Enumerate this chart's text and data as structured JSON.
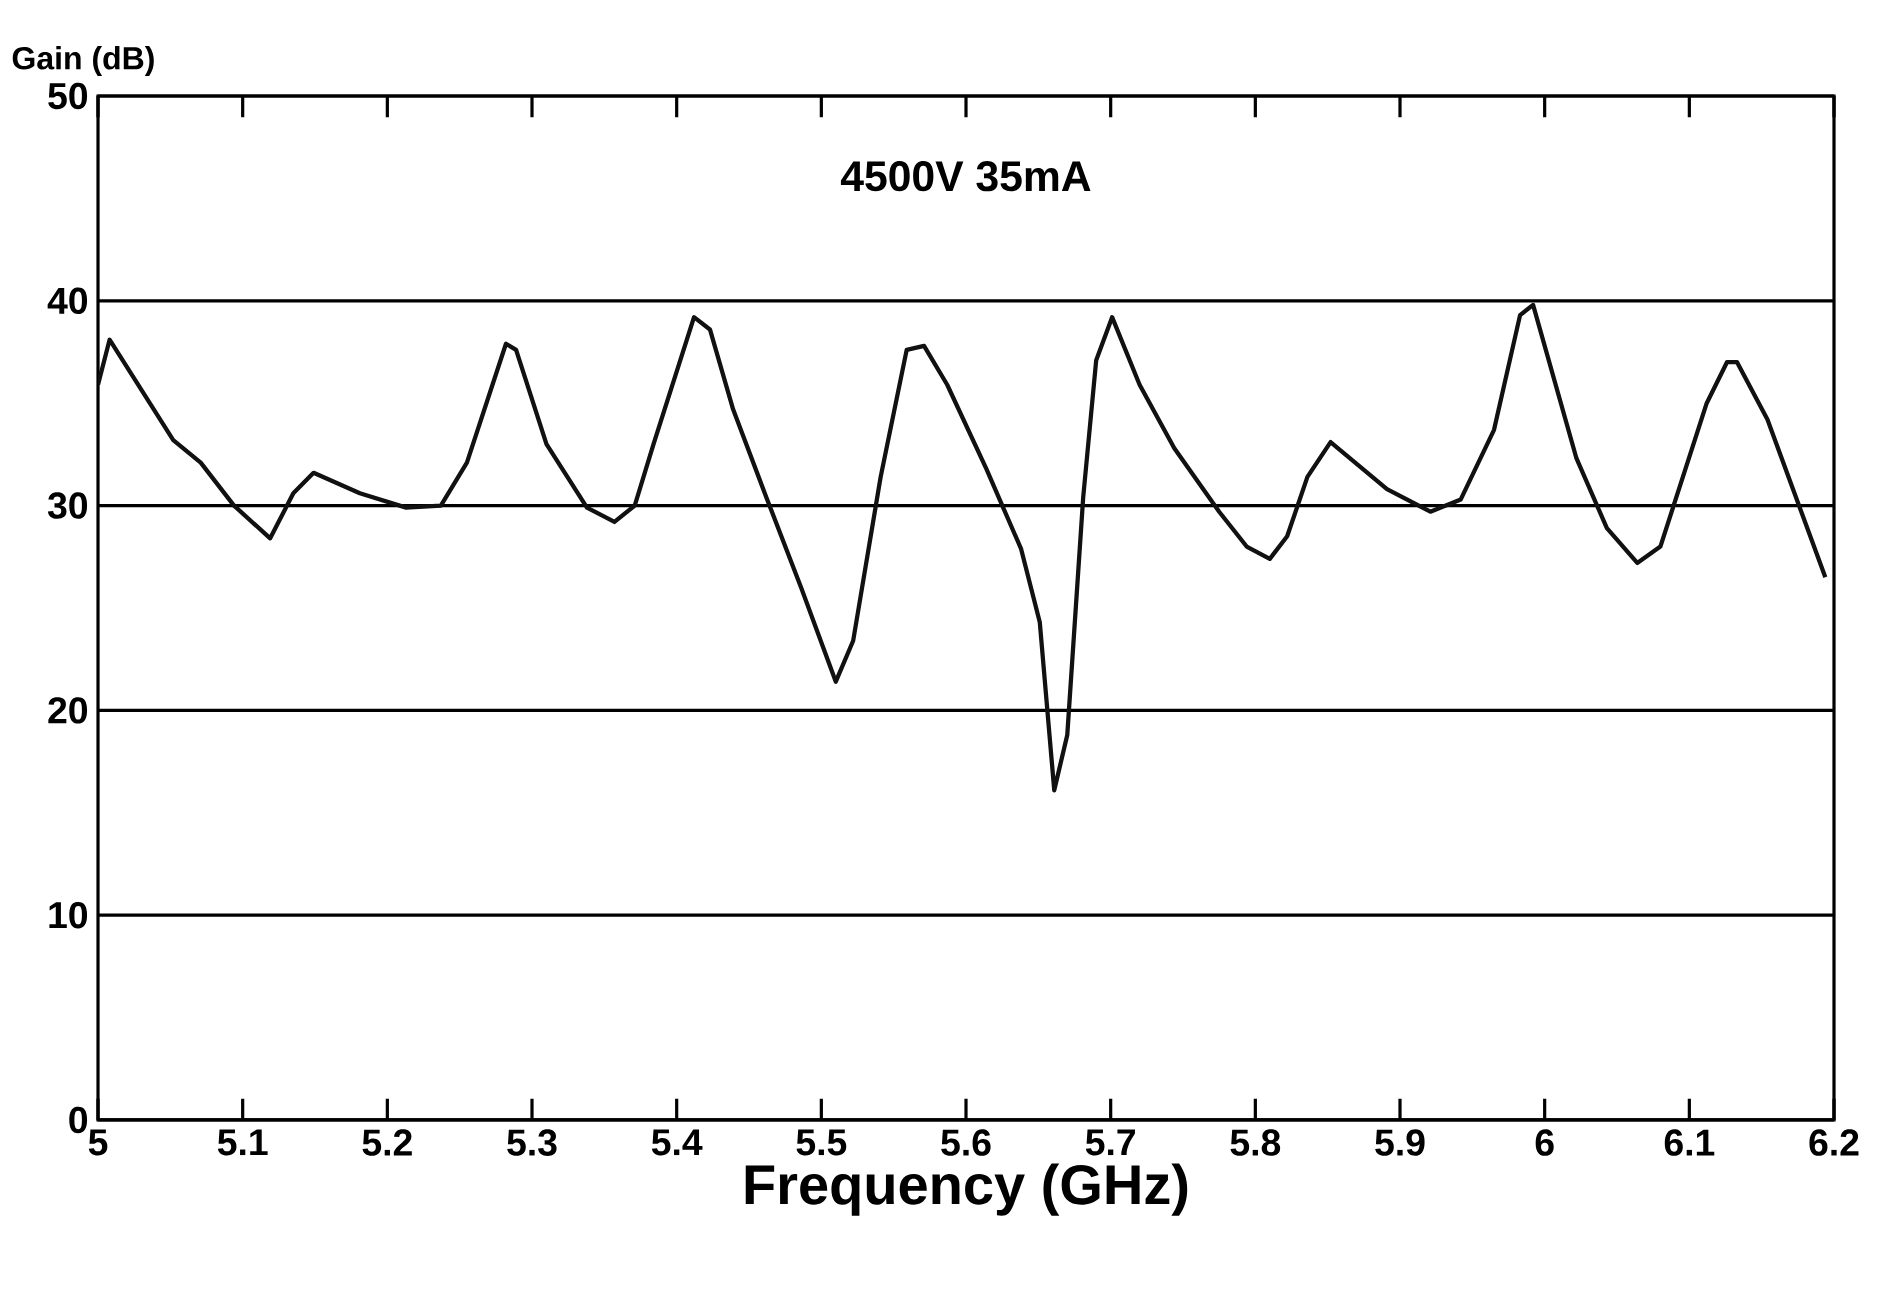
{
  "chart_data": {
    "type": "line",
    "title": "4500V 35mA",
    "xlabel": "Frequency (GHz)",
    "ylabel": "Gain (dB)",
    "x": [
      5.0,
      5.008,
      5.052,
      5.071,
      5.094,
      5.119,
      5.135,
      5.149,
      5.181,
      5.213,
      5.237,
      5.255,
      5.282,
      5.289,
      5.31,
      5.338,
      5.357,
      5.371,
      5.384,
      5.412,
      5.423,
      5.439,
      5.462,
      5.486,
      5.51,
      5.522,
      5.541,
      5.559,
      5.571,
      5.587,
      5.614,
      5.638,
      5.651,
      5.661,
      5.67,
      5.681,
      5.69,
      5.701,
      5.72,
      5.744,
      5.775,
      5.794,
      5.81,
      5.822,
      5.836,
      5.852,
      5.891,
      5.921,
      5.942,
      5.965,
      5.983,
      5.992,
      6.022,
      6.043,
      6.064,
      6.08,
      6.112,
      6.126,
      6.133,
      6.154,
      6.194
    ],
    "series": [
      {
        "color": "#111111",
        "values": [
          35.9,
          38.1,
          33.2,
          32.1,
          30.0,
          28.4,
          30.6,
          31.6,
          30.6,
          29.9,
          30.0,
          32.1,
          37.9,
          37.6,
          33.0,
          29.9,
          29.2,
          30.0,
          33.0,
          39.2,
          38.6,
          34.7,
          30.4,
          26.0,
          21.4,
          23.4,
          31.4,
          37.6,
          37.8,
          35.9,
          31.8,
          27.9,
          24.3,
          16.1,
          18.8,
          30.4,
          37.1,
          39.2,
          35.9,
          32.8,
          29.7,
          28.0,
          27.4,
          28.5,
          31.4,
          33.1,
          30.8,
          29.7,
          30.3,
          33.7,
          39.3,
          39.8,
          32.3,
          28.9,
          27.2,
          28.0,
          35.0,
          37.0,
          37.0,
          34.2,
          26.5
        ]
      }
    ],
    "xlim": [
      5.0,
      6.2
    ],
    "ylim": [
      0,
      50
    ],
    "xticks": [
      5,
      5.1,
      5.2,
      5.3,
      5.4,
      5.5,
      5.6,
      5.7,
      5.8,
      5.9,
      6,
      6.1,
      6.2
    ],
    "yticks": [
      0,
      10,
      20,
      30,
      40,
      50
    ],
    "grid": "y",
    "line_style": "solid",
    "marker": "none"
  }
}
